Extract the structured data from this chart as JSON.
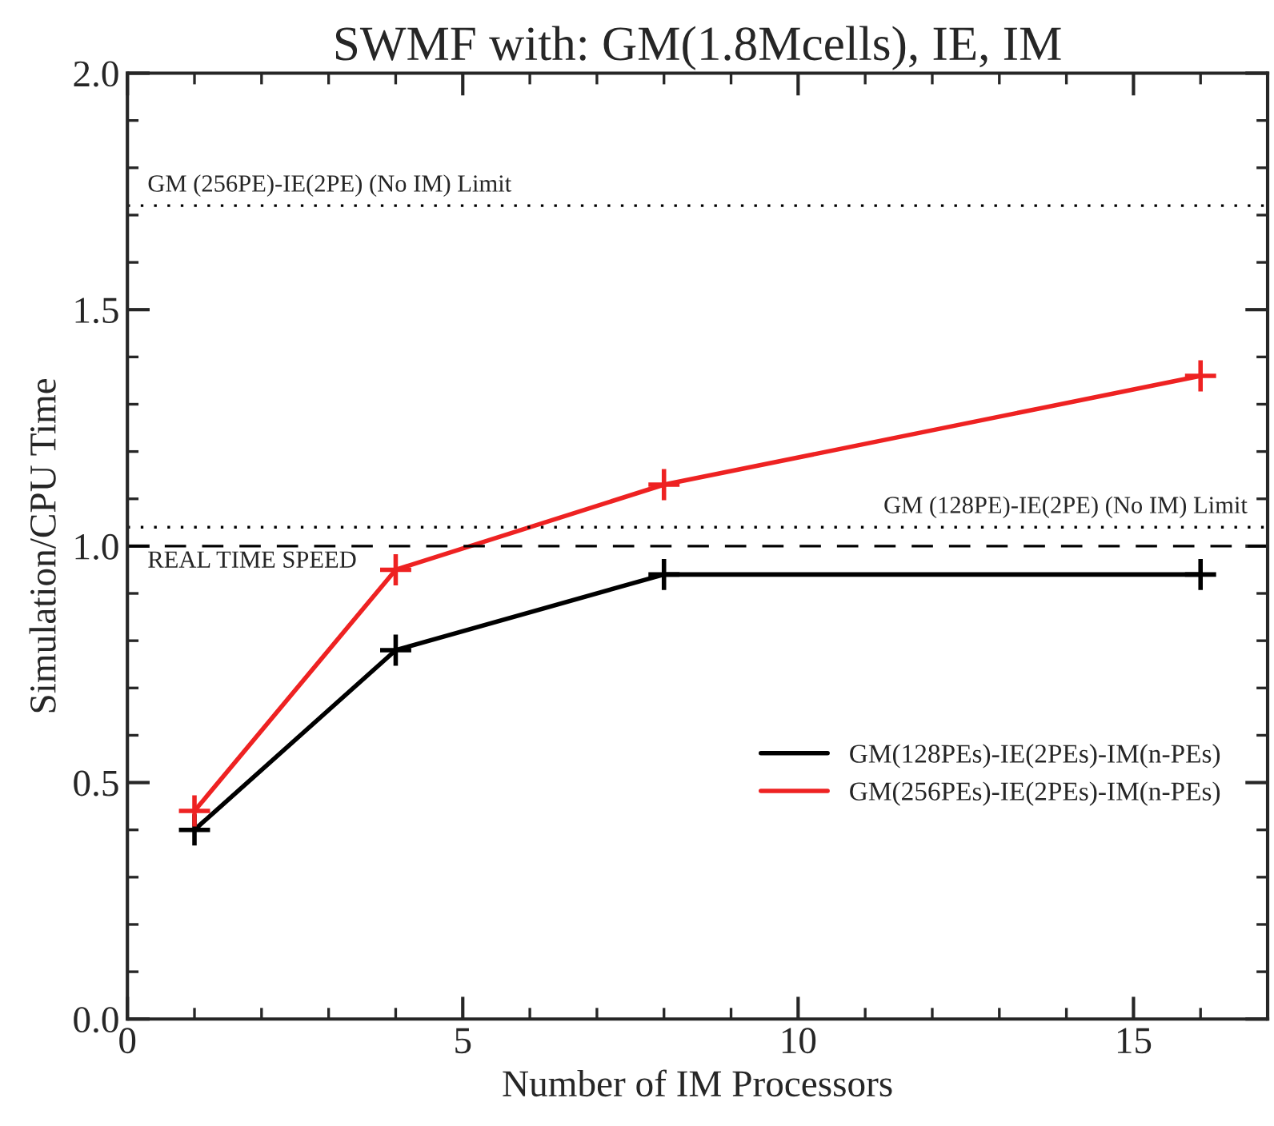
{
  "chart_data": {
    "type": "line",
    "title": "SWMF with: GM(1.8Mcells), IE, IM",
    "xlabel": "Number of IM Processors",
    "ylabel": "Simulation/CPU Time",
    "x": [
      1,
      4,
      8,
      16
    ],
    "series": [
      {
        "name": "GM(128PEs)-IE(2PEs)-IM(n-PEs)",
        "color": "#000000",
        "values": [
          0.4,
          0.78,
          0.94,
          0.94
        ]
      },
      {
        "name": "GM(256PEs)-IE(2PEs)-IM(n-PEs)",
        "color": "#ee2222",
        "values": [
          0.44,
          0.95,
          1.13,
          1.36
        ]
      }
    ],
    "xlim": [
      0,
      17
    ],
    "xticks": [
      0,
      5,
      10,
      15
    ],
    "ylim": [
      0,
      2
    ],
    "yticks": [
      {
        "value": 0,
        "label": "0.0"
      },
      0.5,
      {
        "value": 1,
        "label": "1.0"
      },
      1.5,
      {
        "value": 2,
        "label": "2.0"
      }
    ],
    "ref_lines": [
      {
        "axis": "y",
        "value": 1.72,
        "label": "GM (256PE)-IE(2PE) (No IM) Limit",
        "color": "#000000",
        "line_style": "dotted"
      },
      {
        "axis": "y",
        "value": 1.04,
        "label": "GM (128PE)-IE(2PE) (No IM) Limit",
        "color": "#000000",
        "line_style": "dotted"
      },
      {
        "axis": "y",
        "value": 1.0,
        "label": "REAL TIME SPEED",
        "color": "#000000",
        "line_style": "dashed"
      }
    ],
    "marker": "cross",
    "line_style": "solid",
    "grid": false,
    "legend": "lower right"
  }
}
